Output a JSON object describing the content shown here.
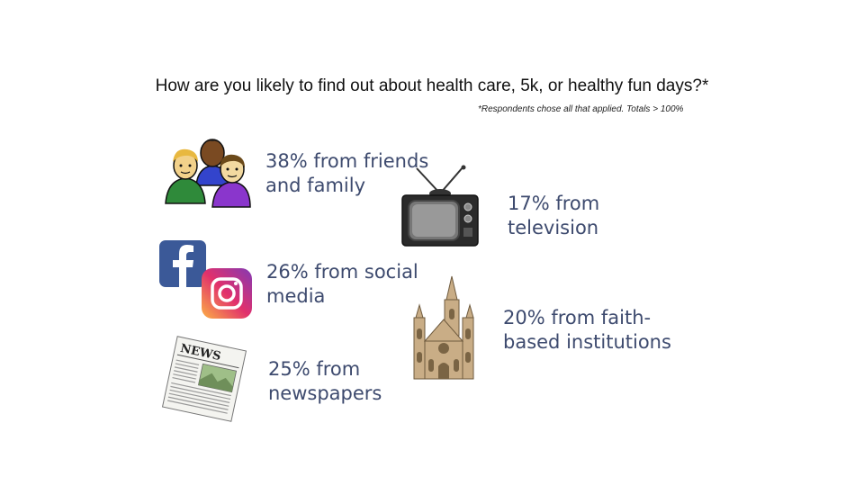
{
  "title": "How are you likely to find out about health care, 5k, or healthy fun days?*",
  "note": "*Respondents chose all that applied. Totals > 100%",
  "items": [
    {
      "id": "friends",
      "line1": "38% from friends",
      "line2": "and family",
      "percent": 38,
      "icon": "people-icon"
    },
    {
      "id": "television",
      "line1": "17% from",
      "line2": "television",
      "percent": 17,
      "icon": "television-icon"
    },
    {
      "id": "social",
      "line1": "26% from social",
      "line2": "media",
      "percent": 26,
      "icon": "social-media-icons"
    },
    {
      "id": "faith",
      "line1": "20% from faith-",
      "line2": "based institutions",
      "percent": 20,
      "icon": "church-icon"
    },
    {
      "id": "newspapers",
      "line1": "25% from",
      "line2": "newspapers",
      "percent": 25,
      "icon": "newspaper-icon"
    }
  ],
  "icon_labels": {
    "newspaper_masthead": "NEWS"
  },
  "colors": {
    "text": "#3d4a6e",
    "facebook": "#3b5998",
    "instagram_start": "#fcb045",
    "instagram_end": "#833ab4"
  }
}
